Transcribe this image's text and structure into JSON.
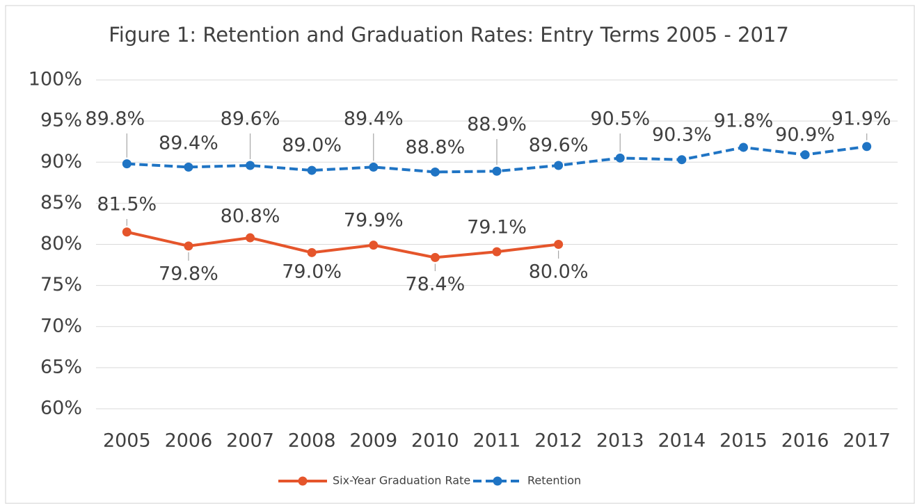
{
  "chart_data": {
    "type": "line",
    "title": "Figure 1: Retention and Graduation Rates: Entry Terms 2005 - 2017",
    "categories": [
      "2005",
      "2006",
      "2007",
      "2008",
      "2009",
      "2010",
      "2011",
      "2012",
      "2013",
      "2014",
      "2015",
      "2016",
      "2017"
    ],
    "series": [
      {
        "name": "Six-Year Graduation Rate",
        "color": "#e5552b",
        "dashed": false,
        "values": [
          81.5,
          79.8,
          80.8,
          79.0,
          79.9,
          78.4,
          79.1,
          80.0,
          null,
          null,
          null,
          null,
          null
        ],
        "value_labels": [
          "81.5%",
          "79.8%",
          "80.8%",
          "79.0%",
          "79.9%",
          "78.4%",
          "79.1%",
          "80.0%",
          null,
          null,
          null,
          null,
          null
        ]
      },
      {
        "name": "Retention",
        "color": "#1f74c4",
        "dashed": true,
        "values": [
          89.8,
          89.4,
          89.6,
          89.0,
          89.4,
          88.8,
          88.9,
          89.6,
          90.5,
          90.3,
          91.8,
          90.9,
          91.9
        ],
        "value_labels": [
          "89.8%",
          "89.4%",
          "89.6%",
          "89.0%",
          "89.4%",
          "88.8%",
          "88.9%",
          "89.6%",
          "90.5%",
          "90.3%",
          "91.8%",
          "90.9%",
          "91.9%"
        ]
      }
    ],
    "ylim": [
      60,
      100
    ],
    "yticks": [
      {
        "value": 60,
        "label": "60%"
      },
      {
        "value": 65,
        "label": "65%"
      },
      {
        "value": 70,
        "label": "70%"
      },
      {
        "value": 75,
        "label": "75%"
      },
      {
        "value": 80,
        "label": "80%"
      },
      {
        "value": 85,
        "label": "85%"
      },
      {
        "value": 90,
        "label": "90%"
      },
      {
        "value": 95,
        "label": "95%"
      },
      {
        "value": 100,
        "label": "100%"
      }
    ],
    "grid": true,
    "legend": "bottom"
  }
}
